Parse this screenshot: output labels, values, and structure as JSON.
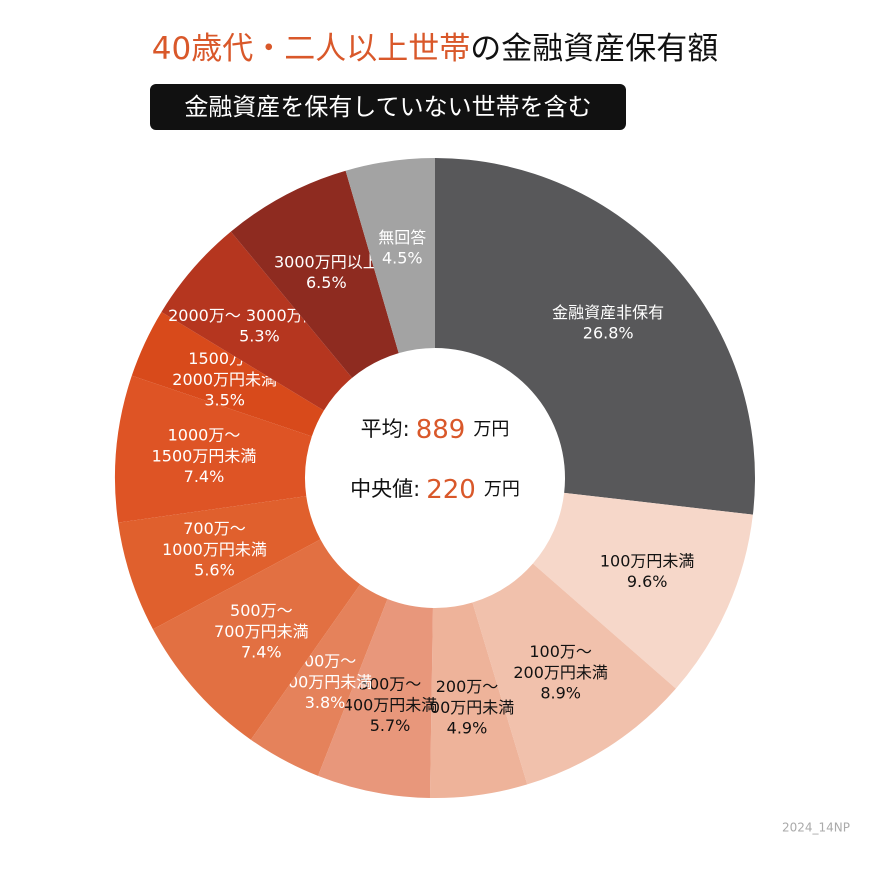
{
  "chart_data": {
    "type": "donut",
    "title_highlight": "40歳代・二人以上世帯",
    "title": "の金融資産保有額",
    "subtitle": "金融資産を保有していない世帯を含む",
    "categories": [
      "金融資産非保有",
      "100万円未満",
      "100万～\n200万円未満",
      "200万～\n300万円未満",
      "300万～\n400万円未満",
      "400万～\n500万円未満",
      "500万～\n700万円未満",
      "700万～\n1000万円未満",
      "1000万～\n1500万円未満",
      "1500万～\n2000万円未満",
      "2000万～ 3000万円未満",
      "3000万円以上",
      "無回答"
    ],
    "values": [
      26.8,
      9.6,
      8.9,
      4.9,
      5.7,
      3.8,
      7.4,
      5.6,
      7.4,
      3.5,
      5.3,
      6.5,
      4.5
    ],
    "value_labels": [
      "26.8%",
      "9.6%",
      "8.9%",
      "4.9%",
      "5.7%",
      "3.8%",
      "7.4%",
      "5.6%",
      "7.4%",
      "3.5%",
      "5.3%",
      "6.5%",
      "4.5%"
    ],
    "colors": [
      "#58585a",
      "#f6d7c9",
      "#f1c1ac",
      "#eeb39a",
      "#e8977b",
      "#e5825b",
      "#e27042",
      "#e0602d",
      "#de5425",
      "#d84a1b",
      "#b5361f",
      "#8e2b20",
      "#a3a3a3"
    ],
    "center": [
      {
        "label": "平均:",
        "value": 889,
        "unit": "万円"
      },
      {
        "label": "中央値:",
        "value": 220,
        "unit": "万円"
      }
    ],
    "source": "2024_14NP"
  }
}
